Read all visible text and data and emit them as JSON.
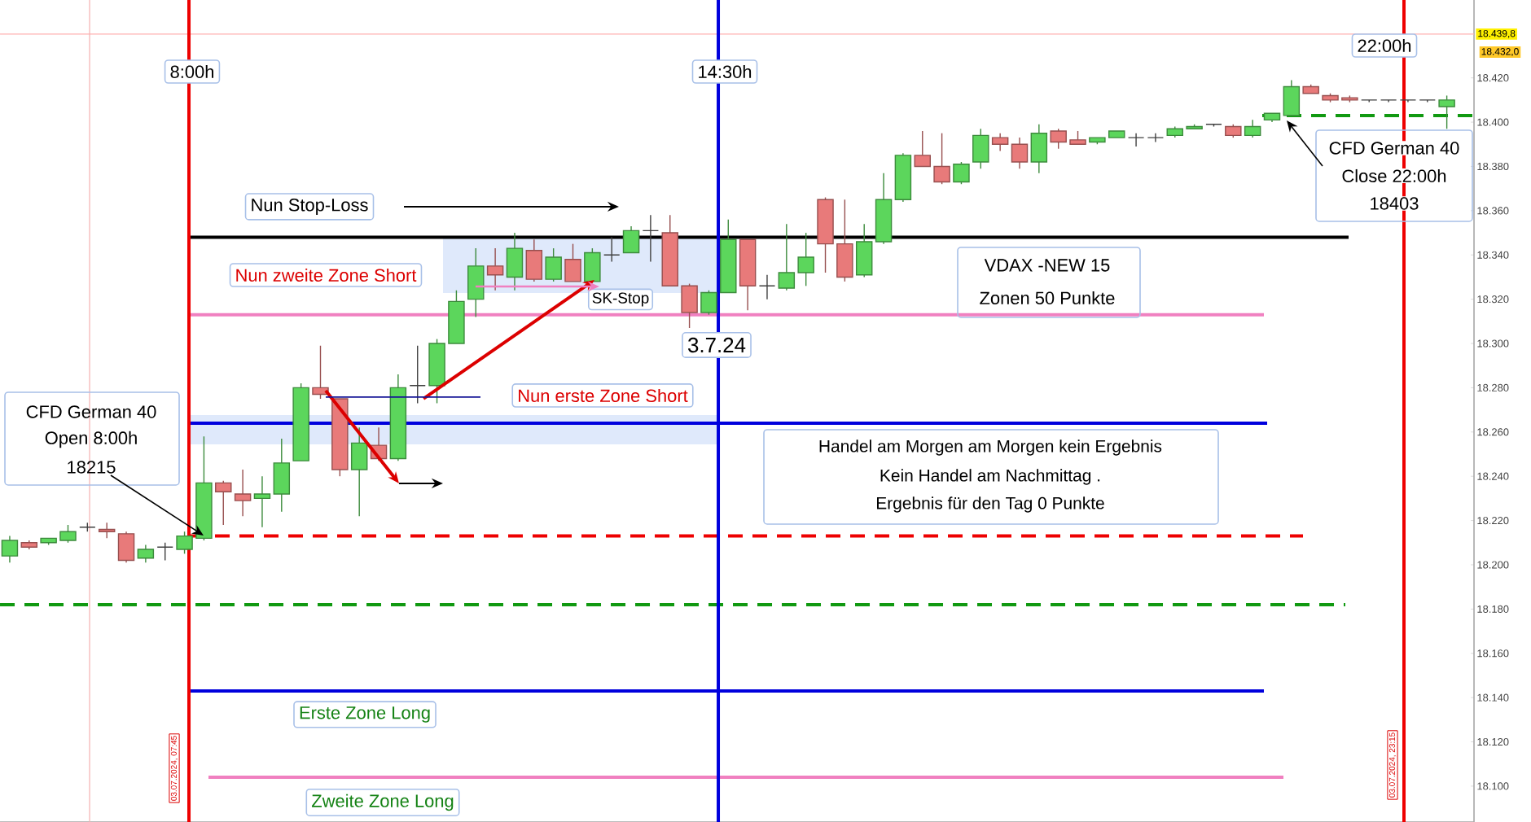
{
  "chart_data": {
    "type": "candlestick",
    "categories": [
      null,
      null,
      null,
      null,
      null,
      null,
      null,
      null,
      null,
      null,
      null,
      null,
      null,
      null,
      null,
      null,
      null,
      null,
      null,
      null,
      null,
      null,
      null,
      null,
      null,
      null,
      null,
      null,
      null,
      null,
      null,
      null,
      null,
      null,
      null,
      null,
      null,
      null,
      null,
      null,
      null,
      null,
      null,
      null,
      null,
      null,
      null,
      null,
      null,
      null,
      null,
      null,
      null,
      null,
      null,
      null,
      null,
      null,
      null,
      null,
      null,
      null,
      null,
      null,
      null,
      null,
      null,
      null,
      null,
      null,
      null,
      null,
      null,
      null,
      null
    ],
    "ohlc": [
      [
        18204,
        18213,
        18201,
        18211
      ],
      [
        18210,
        18211,
        18207,
        18208
      ],
      [
        18210,
        18212,
        18209,
        18212
      ],
      [
        18211,
        18218,
        18210,
        18215
      ],
      [
        18217,
        18219,
        18215,
        18217
      ],
      [
        18216,
        18219,
        18212,
        18215
      ],
      [
        18214,
        18215,
        18201,
        18202
      ],
      [
        18203,
        18209,
        18201,
        18207
      ],
      [
        18208,
        18210,
        18202,
        18208
      ],
      [
        18207,
        18215,
        18205,
        18213
      ],
      [
        18212,
        18258,
        18211,
        18237
      ],
      [
        18237,
        18238,
        18218,
        18233
      ],
      [
        18232,
        18243,
        18222,
        18229
      ],
      [
        18230,
        18240,
        18217,
        18232
      ],
      [
        18232,
        18257,
        18224,
        18246
      ],
      [
        18247,
        18282,
        18247,
        18280
      ],
      [
        18280,
        18299,
        18275,
        18277
      ],
      [
        18275,
        18275,
        18240,
        18243
      ],
      [
        18243,
        18262,
        18222,
        18255
      ],
      [
        18254,
        18262,
        18247,
        18248
      ],
      [
        18248,
        18286,
        18247,
        18280
      ],
      [
        18281,
        18299,
        18273,
        18281
      ],
      [
        18281,
        18302,
        18273,
        18300
      ],
      [
        18300,
        18324,
        18300,
        18319
      ],
      [
        18320,
        18343,
        18312,
        18335
      ],
      [
        18335,
        18343,
        18324,
        18331
      ],
      [
        18330,
        18350,
        18324,
        18343
      ],
      [
        18342,
        18347,
        18328,
        18329
      ],
      [
        18329,
        18343,
        18328,
        18339
      ],
      [
        18338,
        18345,
        18328,
        18328
      ],
      [
        18328,
        18343,
        18328,
        18341
      ],
      [
        18340,
        18348,
        18337,
        18340
      ],
      [
        18341,
        18353,
        18341,
        18351
      ],
      [
        18351,
        18358,
        18337,
        18351
      ],
      [
        18350,
        18358,
        18326,
        18326
      ],
      [
        18326,
        18327,
        18307,
        18314
      ],
      [
        18314,
        18324,
        18313,
        18323
      ],
      [
        18323,
        18356,
        18323,
        18347
      ],
      [
        18347,
        18347,
        18315,
        18326
      ],
      [
        18326,
        18331,
        18320,
        18326
      ],
      [
        18325,
        18354,
        18324,
        18332
      ],
      [
        18332,
        18350,
        18326,
        18339
      ],
      [
        18365,
        18366,
        18332,
        18345
      ],
      [
        18345,
        18365,
        18328,
        18330
      ],
      [
        18331,
        18354,
        18330,
        18346
      ],
      [
        18346,
        18377,
        18345,
        18365
      ],
      [
        18365,
        18386,
        18364,
        18385
      ],
      [
        18385,
        18396,
        18380,
        18380
      ],
      [
        18380,
        18395,
        18372,
        18373
      ],
      [
        18373,
        18382,
        18372,
        18381
      ],
      [
        18382,
        18397,
        18379,
        18394
      ],
      [
        18393,
        18395,
        18387,
        18390
      ],
      [
        18390,
        18393,
        18379,
        18382
      ],
      [
        18382,
        18399,
        18377,
        18395
      ],
      [
        18396,
        18397,
        18388,
        18391
      ],
      [
        18392,
        18396,
        18390,
        18390
      ],
      [
        18391,
        18393,
        18390,
        18393
      ],
      [
        18393,
        18396,
        18393,
        18396
      ],
      [
        18393,
        18395,
        18389,
        18393
      ],
      [
        18393,
        18395,
        18391,
        18393
      ],
      [
        18394,
        18398,
        18393,
        18397
      ],
      [
        18397,
        18399,
        18397,
        18398
      ],
      [
        18399,
        18399,
        18398,
        18399
      ],
      [
        18398,
        18399,
        18393,
        18394
      ],
      [
        18394,
        18401,
        18393,
        18398
      ],
      [
        18401,
        18404,
        18400,
        18404
      ],
      [
        18403,
        18419,
        18403,
        18416
      ],
      [
        18416,
        18417,
        18413,
        18413
      ],
      [
        18412,
        18413,
        18409,
        18410
      ],
      [
        18411,
        18412,
        18409,
        18410
      ],
      [
        18410,
        18410,
        18409,
        18410
      ],
      [
        18410,
        18410,
        18409,
        18410
      ],
      [
        18410,
        18410,
        18409,
        18410
      ],
      [
        18410,
        18410,
        18409,
        18410
      ],
      [
        18407,
        18412,
        18397,
        18410
      ]
    ],
    "colors": [
      "#5cd65c",
      "#e87a7a",
      "#5cd65c",
      "#5cd65c",
      "#404040",
      "#e87a7a",
      "#e87a7a",
      "#5cd65c",
      "#404040",
      "#5cd65c",
      "#5cd65c",
      "#e87a7a",
      "#e87a7a",
      "#5cd65c",
      "#5cd65c",
      "#5cd65c",
      "#e87a7a",
      "#e87a7a",
      "#5cd65c",
      "#e87a7a",
      "#5cd65c",
      "#404040",
      "#5cd65c",
      "#5cd65c",
      "#5cd65c",
      "#e87a7a",
      "#5cd65c",
      "#e87a7a",
      "#5cd65c",
      "#e87a7a",
      "#5cd65c",
      "#404040",
      "#5cd65c",
      "#404040",
      "#e87a7a",
      "#e87a7a",
      "#5cd65c",
      "#5cd65c",
      "#e87a7a",
      "#404040",
      "#5cd65c",
      "#5cd65c",
      "#e87a7a",
      "#e87a7a",
      "#5cd65c",
      "#5cd65c",
      "#5cd65c",
      "#e87a7a",
      "#e87a7a",
      "#5cd65c",
      "#5cd65c",
      "#e87a7a",
      "#e87a7a",
      "#5cd65c",
      "#e87a7a",
      "#e87a7a",
      "#5cd65c",
      "#5cd65c",
      "#404040",
      "#404040",
      "#5cd65c",
      "#5cd65c",
      "#404040",
      "#e87a7a",
      "#5cd65c",
      "#5cd65c",
      "#5cd65c",
      "#e87a7a",
      "#e87a7a",
      "#e87a7a",
      "#404040",
      "#404040",
      "#404040",
      "#404040",
      "#5cd65c"
    ],
    "ylim": [
      18083.8,
      18455.2
    ],
    "yticks": [
      {
        "value": 18100,
        "label": "18.100"
      },
      {
        "value": 18120,
        "label": "18.120"
      },
      {
        "value": 18140,
        "label": "18.140"
      },
      {
        "value": 18160,
        "label": "18.160"
      },
      {
        "value": 18180,
        "label": "18.180"
      },
      {
        "value": 18200,
        "label": "18.200"
      },
      {
        "value": 18220,
        "label": "18.220"
      },
      {
        "value": 18240,
        "label": "18.240"
      },
      {
        "value": 18260,
        "label": "18.260"
      },
      {
        "value": 18280,
        "label": "18.280"
      },
      {
        "value": 18300,
        "label": "18.300"
      },
      {
        "value": 18320,
        "label": "18.320"
      },
      {
        "value": 18340,
        "label": "18.340"
      },
      {
        "value": 18360,
        "label": "18.360"
      },
      {
        "value": 18380,
        "label": "18.380"
      },
      {
        "value": 18400,
        "label": "18.400"
      },
      {
        "value": 18420,
        "label": "18.420"
      }
    ],
    "ref_lines": [
      {
        "axis": "y",
        "value": 18348,
        "color": "#000000"
      },
      {
        "axis": "y",
        "value": 18313,
        "color": "#f080c0"
      },
      {
        "axis": "y",
        "value": 18264,
        "color": "#0000dd"
      },
      {
        "axis": "y",
        "value": 18213,
        "color": "#ee0000",
        "line_style": "dashed"
      },
      {
        "axis": "y",
        "value": 18182,
        "color": "#119911",
        "line_style": "dashed"
      },
      {
        "axis": "y",
        "value": 18143,
        "color": "#0000dd"
      },
      {
        "axis": "y",
        "value": 18104,
        "color": "#f080c0"
      },
      {
        "axis": "y",
        "value": 18403,
        "color": "#119911",
        "line_style": "dashed"
      },
      {
        "axis": "y",
        "value": 18439.8,
        "label": "18.439,8",
        "color": "#ffb0b0"
      }
    ],
    "annotations": [
      "Nun Stop-Loss",
      "Nun zweite Zone Short",
      "Nun erste Zone Short",
      "SK-Stop",
      "3.7.24",
      "VDAX -NEW 15",
      "Zonen 50 Punkte",
      "Handel am Morgen am Morgen kein Ergebnis",
      "Kein Handel  am Nachmittag .",
      "Ergebnis für den Tag 0 Punkte",
      "CFD German 40",
      "Open 8:00h",
      "18215",
      "CFD German 40",
      "Close 22:00h",
      "18403",
      "Erste Zone Long",
      "Zweite Zone Long",
      "03.07.2024, 07:45",
      "03.07.2024, 23:15",
      "18.432,0",
      "8:00h",
      "14:30h",
      "22:00h"
    ]
  }
}
